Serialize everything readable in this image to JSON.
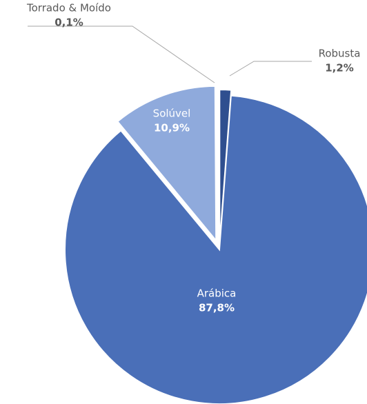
{
  "chart_data": {
    "type": "pie",
    "categories": [
      "Robusta",
      "Arábica",
      "Solúvel",
      "Torrado & Moído"
    ],
    "values": [
      1.2,
      87.8,
      10.9,
      0.1
    ],
    "value_labels": [
      "1,2%",
      "87,8%",
      "10,9%",
      "0,1%"
    ],
    "colors": [
      "#2f4f8f",
      "#4a6fb8",
      "#8faadc",
      "#1f3864"
    ]
  }
}
